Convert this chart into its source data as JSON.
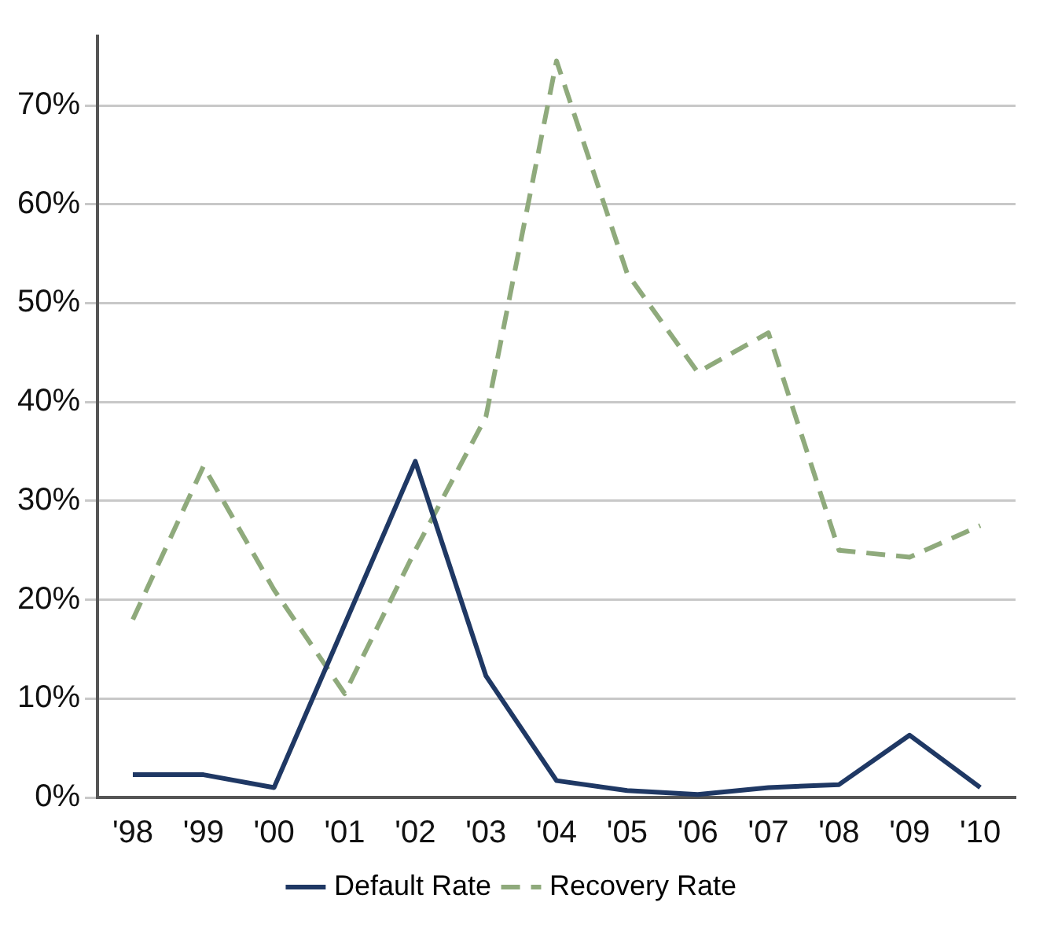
{
  "chart_data": {
    "type": "line",
    "categories": [
      "'98",
      "'99",
      "'00",
      "'01",
      "'02",
      "'03",
      "'04",
      "'05",
      "'06",
      "'07",
      "'08",
      "'09",
      "'10"
    ],
    "series": [
      {
        "name": "Default Rate",
        "color": "#1f3864",
        "line_style": "solid",
        "values": [
          2.3,
          2.3,
          1.0,
          17.5,
          34,
          12.3,
          1.7,
          0.7,
          0.3,
          1.0,
          1.3,
          6.3,
          1.0
        ]
      },
      {
        "name": "Recovery Rate",
        "color": "#8faa7c",
        "line_style": "dashed",
        "values": [
          18,
          33.5,
          21,
          10.5,
          25,
          38.5,
          74.5,
          53,
          43,
          47,
          25,
          24.3,
          27.5
        ]
      }
    ],
    "ylim": [
      0,
      77
    ],
    "yticks": [
      {
        "value": 0,
        "label": "0%"
      },
      {
        "value": 10,
        "label": "10%"
      },
      {
        "value": 20,
        "label": "20%"
      },
      {
        "value": 30,
        "label": "30%"
      },
      {
        "value": 40,
        "label": "40%"
      },
      {
        "value": 50,
        "label": "50%"
      },
      {
        "value": 60,
        "label": "60%"
      },
      {
        "value": 70,
        "label": "70%"
      }
    ],
    "grid": "y",
    "legend": "bottom",
    "marker": "none"
  }
}
